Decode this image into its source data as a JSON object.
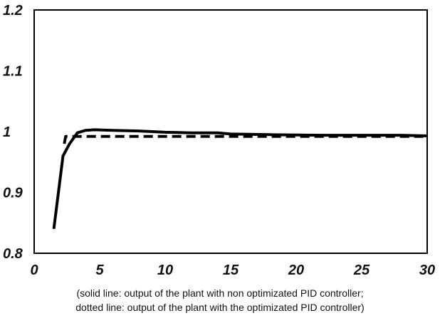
{
  "chart_data": {
    "type": "line",
    "title": "",
    "xlabel": "",
    "ylabel": "",
    "xlim": [
      0,
      30
    ],
    "ylim": [
      0.8,
      1.2
    ],
    "x_ticks": [
      "0",
      "5",
      "10",
      "15",
      "20",
      "25",
      "30"
    ],
    "y_ticks": [
      "0.8",
      "0.9",
      "1",
      "1.1",
      "1.2"
    ],
    "grid": false,
    "legend": "none",
    "caption_lines": [
      "(solid line: output of the plant with non optimizated PID controller;",
      "dotted line: output of the plant with the optimizated PID controller)"
    ],
    "series": [
      {
        "style": "solid",
        "color": "#000000",
        "x": [
          1.5,
          2.2,
          2.7,
          3.3,
          3.9,
          4.6,
          6.0,
          8.0,
          10.0,
          12.0,
          14.0,
          15.0,
          18.0,
          22.0,
          26.0,
          28.0,
          30.0
        ],
        "y": [
          0.84,
          0.96,
          0.98,
          0.998,
          1.002,
          1.003,
          1.002,
          1.001,
          0.999,
          0.998,
          0.998,
          0.996,
          0.995,
          0.994,
          0.994,
          0.994,
          0.993
        ]
      },
      {
        "style": "dashed",
        "color": "#000000",
        "x": [
          2.3,
          2.4,
          3.0,
          6.0,
          10.0,
          15.0,
          20.0,
          25.0,
          30.0
        ],
        "y": [
          0.98,
          0.992,
          0.992,
          0.992,
          0.992,
          0.992,
          0.992,
          0.992,
          0.992
        ]
      }
    ]
  }
}
